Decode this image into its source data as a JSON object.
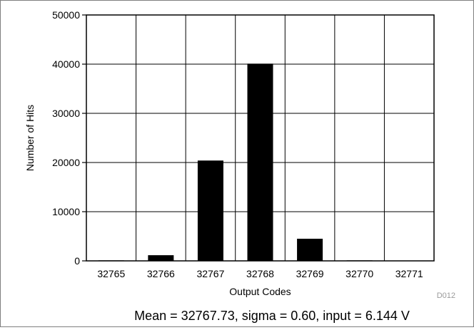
{
  "chart_data": {
    "type": "bar",
    "title": "",
    "xlabel": "Output Codes",
    "ylabel": "Number of Hits",
    "categories": [
      "32765",
      "32766",
      "32767",
      "32768",
      "32769",
      "32770",
      "32771"
    ],
    "values": [
      100,
      1150,
      20400,
      40100,
      4500,
      100,
      50
    ],
    "ylim": [
      0,
      50000
    ],
    "yticks": [
      "0",
      "10000",
      "20000",
      "30000",
      "40000",
      "50000"
    ],
    "grid": true,
    "legend": "none",
    "bar_color": "#000000"
  },
  "figure_id": "D012",
  "caption": "Mean = 32767.73, sigma = 0.60, input = 6.144 V"
}
